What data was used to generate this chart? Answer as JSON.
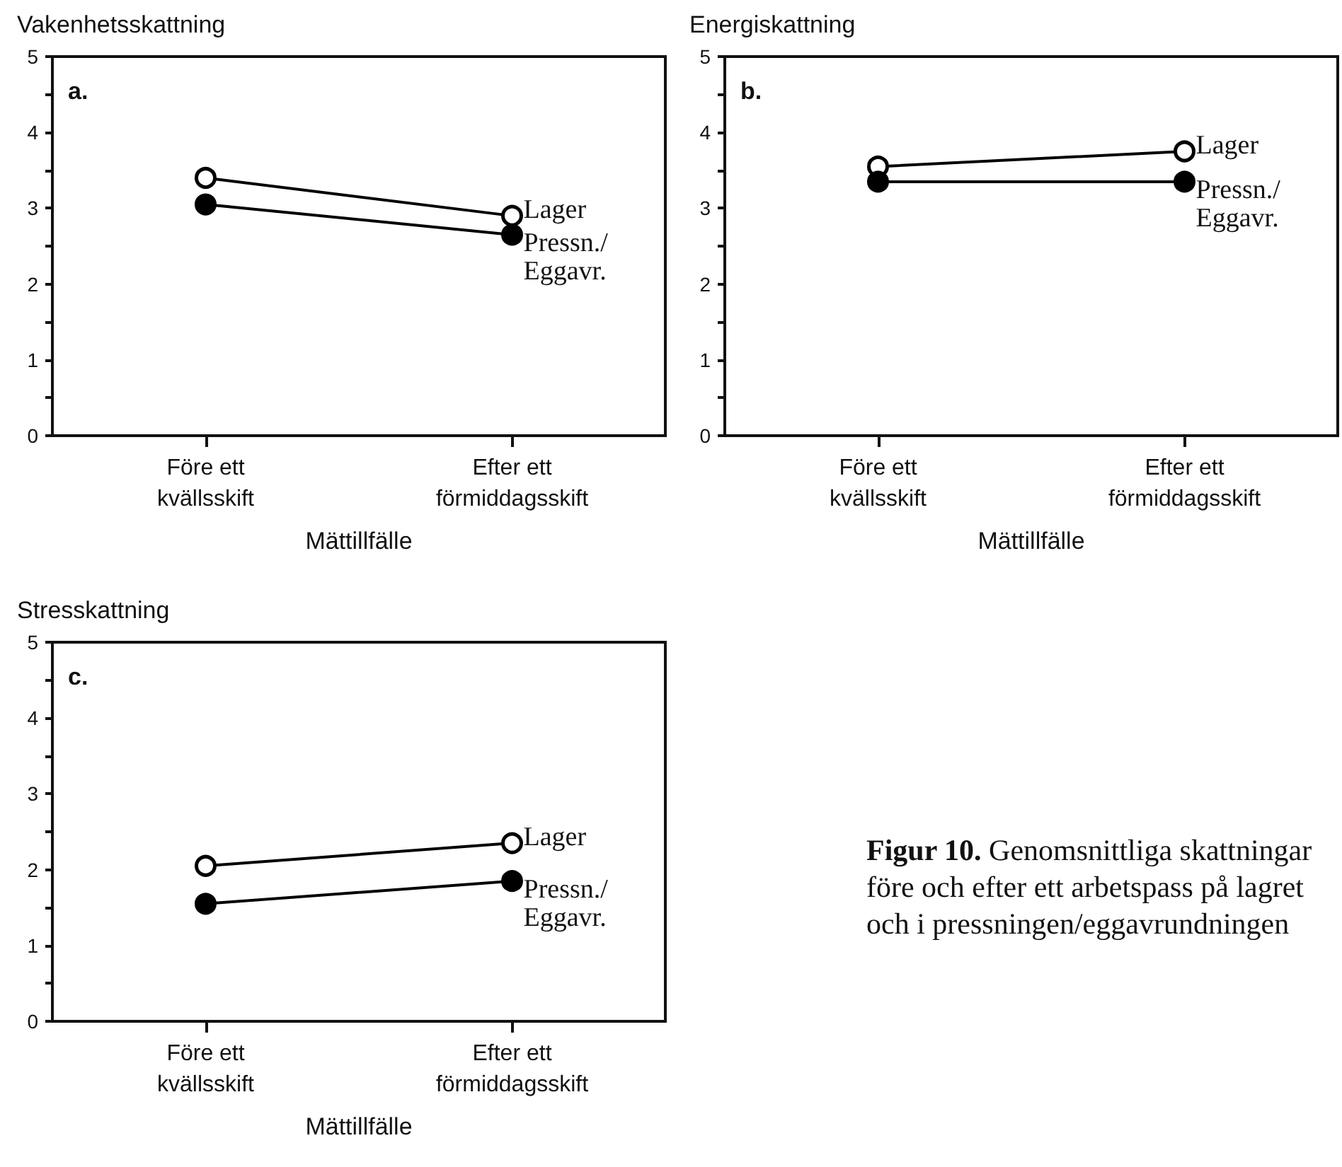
{
  "chart_data": [
    {
      "type": "line",
      "title": "Vakenhetsskattning",
      "xlabel": "Mättillfälle",
      "annotations": [
        "a."
      ],
      "categories": [
        "Före ett\nkvällsskift",
        "Efter ett\nförmiddagsskift"
      ],
      "series": [
        {
          "name": "Lager",
          "color": "#ffffff",
          "values": [
            3.4,
            2.9
          ]
        },
        {
          "name": "Pressn./\nEggavr.",
          "color": "#000000",
          "values": [
            3.05,
            2.65
          ]
        }
      ],
      "ylim": [
        0,
        5
      ],
      "yticks": [
        0,
        {
          "value": 0.5,
          "label": null
        },
        1,
        {
          "value": 1.5,
          "label": null
        },
        2,
        {
          "value": 2.5,
          "label": null
        },
        3,
        {
          "value": 3.5,
          "label": null
        },
        4,
        {
          "value": 4.5,
          "label": null
        },
        5
      ],
      "grid": false,
      "legend": false,
      "marker": "circle",
      "line_style": "solid"
    },
    {
      "type": "line",
      "title": "Energiskattning",
      "xlabel": "Mättillfälle",
      "annotations": [
        "b."
      ],
      "categories": [
        "Före ett\nkvällsskift",
        "Efter ett\nförmiddagsskift"
      ],
      "series": [
        {
          "name": "Lager",
          "color": "#ffffff",
          "values": [
            3.55,
            3.75
          ]
        },
        {
          "name": "Pressn./\nEggavr.",
          "color": "#000000",
          "values": [
            3.35,
            3.35
          ]
        }
      ],
      "ylim": [
        0,
        5
      ],
      "yticks": [
        0,
        {
          "value": 0.5,
          "label": null
        },
        1,
        {
          "value": 1.5,
          "label": null
        },
        2,
        {
          "value": 2.5,
          "label": null
        },
        3,
        {
          "value": 3.5,
          "label": null
        },
        4,
        {
          "value": 4.5,
          "label": null
        },
        5
      ],
      "grid": false,
      "legend": false,
      "marker": "circle",
      "line_style": "solid"
    },
    {
      "type": "line",
      "title": "Stresskattning",
      "xlabel": "Mättillfälle",
      "annotations": [
        "c."
      ],
      "categories": [
        "Före ett\nkvällsskift",
        "Efter ett\nförmiddagsskift"
      ],
      "series": [
        {
          "name": "Lager",
          "color": "#ffffff",
          "values": [
            2.05,
            2.35
          ]
        },
        {
          "name": "Pressn./\nEggavr.",
          "color": "#000000",
          "values": [
            1.55,
            1.85
          ]
        }
      ],
      "ylim": [
        0,
        5
      ],
      "yticks": [
        0,
        {
          "value": 0.5,
          "label": null
        },
        1,
        {
          "value": 1.5,
          "label": null
        },
        2,
        {
          "value": 2.5,
          "label": null
        },
        3,
        {
          "value": 3.5,
          "label": null
        },
        4,
        {
          "value": 4.5,
          "label": null
        },
        5
      ],
      "grid": false,
      "legend": false,
      "marker": "circle",
      "line_style": "solid"
    },
    {
      "type": "other",
      "annotations": [
        "Figur 10.",
        "Genomsnittliga skattningar före och efter ett arbetspass på lagret och i pressningen/eggavrundningen"
      ]
    }
  ]
}
